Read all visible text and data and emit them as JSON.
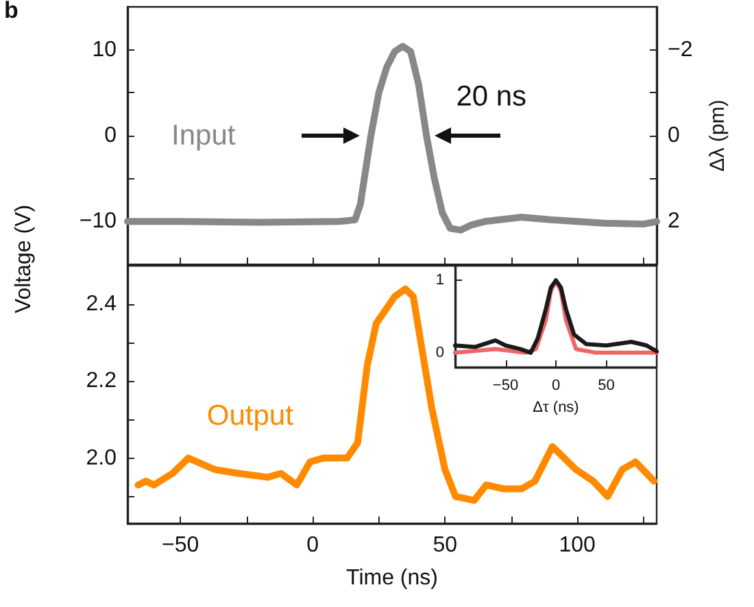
{
  "chart_data": [
    {
      "type": "line",
      "ylabel": "Voltage (V)",
      "y2label": "Δλ (pm)",
      "annotations": [
        "b",
        "20 ns"
      ],
      "tick_labels": "y",
      "grid": false,
      "xlim": [
        -70,
        130
      ],
      "xticks": [
        {
          "value": -50,
          "label": null
        },
        {
          "value": -25,
          "label": null
        },
        {
          "value": 0,
          "label": null
        },
        {
          "value": 25,
          "label": null
        },
        {
          "value": 50,
          "label": null
        },
        {
          "value": 75,
          "label": null
        },
        {
          "value": 100,
          "label": null
        },
        {
          "value": 125,
          "label": null
        }
      ],
      "ylim": [
        -15,
        15
      ],
      "yticks": [
        {
          "value": -10,
          "label": "−10"
        },
        {
          "value": -5,
          "label": null
        },
        0,
        {
          "value": 5,
          "label": null
        },
        10
      ],
      "y2lim": [
        3,
        -3
      ],
      "y2ticks": [
        2,
        {
          "value": 1,
          "label": null
        },
        0,
        {
          "value": -1,
          "label": null
        },
        {
          "value": -2,
          "label": "−2"
        }
      ],
      "series": [
        {
          "name": "Input",
          "color": "#888888",
          "x": [
            -70,
            -50,
            -20,
            10,
            16,
            18,
            20,
            22,
            25,
            28,
            31,
            34,
            37,
            40,
            43,
            46,
            49,
            52,
            56,
            60,
            65,
            79,
            90,
            110,
            125,
            130
          ],
          "values": [
            -10,
            -10,
            -10.1,
            -10,
            -9.8,
            -8,
            -4,
            0,
            5,
            8,
            9.8,
            10.4,
            9.8,
            6,
            0,
            -5,
            -9,
            -10.8,
            -11,
            -10.4,
            -10,
            -9.5,
            -9.8,
            -10.2,
            -10.3,
            -10
          ]
        }
      ]
    },
    {
      "type": "line",
      "xlabel": "Time (ns)",
      "grid": false,
      "xlim": [
        -70,
        130
      ],
      "xticks": [
        {
          "value": -50,
          "label": "−50"
        },
        {
          "value": -25,
          "label": null
        },
        0,
        {
          "value": 25,
          "label": null
        },
        50,
        {
          "value": 75,
          "label": null
        },
        100,
        {
          "value": 125,
          "label": null
        }
      ],
      "ylim": [
        1.83,
        2.5
      ],
      "yticks": [
        {
          "value": 1.9,
          "label": null
        },
        {
          "value": 2,
          "label": "2.0"
        },
        {
          "value": 2.1,
          "label": null
        },
        {
          "value": 2.2,
          "label": "2.2"
        },
        {
          "value": 2.3,
          "label": null
        },
        {
          "value": 2.4,
          "label": "2.4"
        }
      ],
      "series": [
        {
          "name": "Output",
          "color": "#ff8a00",
          "x": [
            -66,
            -63,
            -60,
            -53,
            -47,
            -37,
            -28,
            -17,
            -12,
            -6,
            -1,
            4,
            13,
            17,
            20.6,
            24,
            31,
            35,
            38,
            45,
            50,
            54,
            61,
            65.6,
            72,
            79,
            84,
            90.6,
            99.5,
            106,
            111.5,
            117,
            122,
            129
          ],
          "values": [
            1.93,
            1.94,
            1.93,
            1.96,
            2.0,
            1.97,
            1.96,
            1.95,
            1.96,
            1.93,
            1.99,
            2.0,
            2.0,
            2.04,
            2.24,
            2.35,
            2.42,
            2.44,
            2.42,
            2.13,
            1.97,
            1.9,
            1.89,
            1.93,
            1.92,
            1.92,
            1.94,
            2.03,
            1.97,
            1.94,
            1.9,
            1.97,
            1.99,
            1.94
          ]
        }
      ]
    },
    {
      "type": "line",
      "xlabel": "Δτ (ns)",
      "grid": false,
      "xlim": [
        -100,
        100
      ],
      "xticks": [
        {
          "value": -50,
          "label": "−50"
        },
        0,
        50
      ],
      "ylim": [
        -0.2,
        1.2
      ],
      "yticks": [
        0,
        1
      ],
      "series": [
        {
          "color": "#f06666",
          "x": [
            -100,
            -60,
            -30,
            -20,
            -10,
            -5,
            0,
            5,
            10,
            20,
            40,
            100
          ],
          "values": [
            0,
            0.05,
            0,
            0.05,
            0.45,
            0.85,
            1.0,
            0.85,
            0.45,
            0.05,
            0,
            0
          ]
        },
        {
          "color": "#1a1a1a",
          "x": [
            -100,
            -80,
            -60,
            -50,
            -35,
            -25,
            -18,
            -10,
            -5,
            0,
            5,
            10,
            18,
            30,
            50,
            75,
            90,
            100
          ],
          "values": [
            0.1,
            0.08,
            0.17,
            0.1,
            0.05,
            0,
            0.2,
            0.6,
            0.9,
            1.0,
            0.9,
            0.6,
            0.25,
            0.12,
            0.1,
            0.15,
            0.1,
            0.02
          ]
        }
      ]
    }
  ]
}
